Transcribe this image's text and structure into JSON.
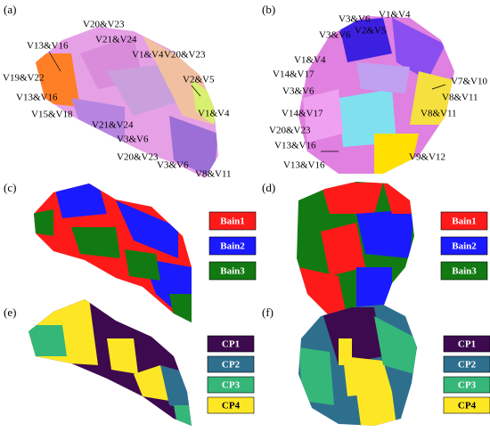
{
  "panels": [
    {
      "label": "(a)",
      "annotations": [
        "V20&V23",
        "V13&V16",
        "V21&V24",
        "V1&V4",
        "V20&V23",
        "V19&V22",
        "V2&V5",
        "V13&V16",
        "V15&V18",
        "V1&V4",
        "V21&V24",
        "V3&V6",
        "V20&V23",
        "V3&V6",
        "V8&V11"
      ]
    },
    {
      "label": "(b)",
      "annotations": [
        "V1&V4",
        "V3&V6",
        "V2&V5",
        "V3&V6",
        "V1&V4",
        "V14&V17",
        "V7&V10",
        "V3&V6",
        "V8&V11",
        "V8&V11",
        "V14&V17",
        "V20&V23",
        "V13&V16",
        "V9&V12",
        "V13&V16"
      ]
    },
    {
      "label": "(c)",
      "legend": [
        {
          "text": "Bain1",
          "color": "#ff1a1a"
        },
        {
          "text": "Bain2",
          "color": "#1a1aff"
        },
        {
          "text": "Bain3",
          "color": "#127a12"
        }
      ]
    },
    {
      "label": "(d)",
      "legend": [
        {
          "text": "Bain1",
          "color": "#ff1a1a"
        },
        {
          "text": "Bain2",
          "color": "#1a1aff"
        },
        {
          "text": "Bain3",
          "color": "#127a12"
        }
      ]
    },
    {
      "label": "(e)",
      "legend": [
        {
          "text": "CP1",
          "color": "#3d0a4f"
        },
        {
          "text": "CP2",
          "color": "#2e6f8e"
        },
        {
          "text": "CP3",
          "color": "#35b779"
        },
        {
          "text": "CP4",
          "color": "#fde725"
        }
      ]
    },
    {
      "label": "(f)",
      "legend": [
        {
          "text": "CP1",
          "color": "#3d0a4f"
        },
        {
          "text": "CP2",
          "color": "#2e6f8e"
        },
        {
          "text": "CP3",
          "color": "#35b779"
        },
        {
          "text": "CP4",
          "color": "#fde725"
        }
      ]
    }
  ]
}
